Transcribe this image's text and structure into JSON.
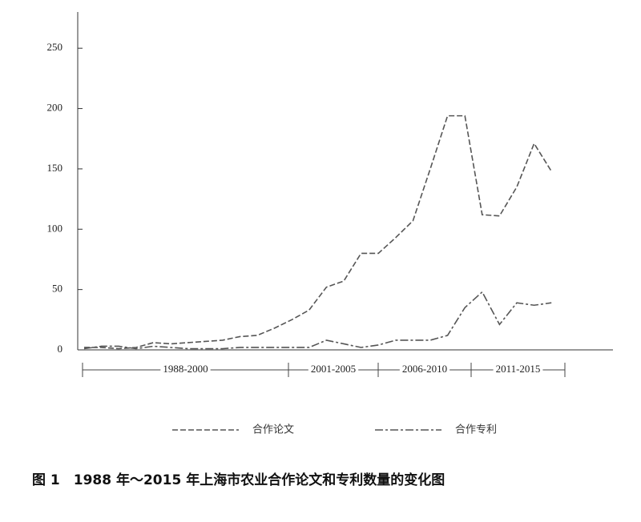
{
  "chart_data": {
    "type": "line",
    "caption": "图 1　1988 年～2015 年上海市农业合作论文和专利数量的变化图",
    "categories": [
      null,
      null,
      null,
      null,
      null,
      null,
      null,
      null,
      null,
      null,
      null,
      null,
      null,
      null,
      null,
      null,
      null,
      null,
      null,
      null,
      null,
      null,
      null,
      null,
      null,
      null,
      null,
      null
    ],
    "periods": [
      "1988-2000",
      "2001-2005",
      "2006-2010",
      "2011-2015"
    ],
    "series": [
      {
        "name": "合作论文",
        "color": "#555555",
        "values": [
          2,
          2,
          1,
          2,
          6,
          5,
          6,
          7,
          8,
          11,
          12,
          18,
          25,
          33,
          52,
          57,
          80,
          80,
          93,
          107,
          150,
          194,
          194,
          112,
          111,
          135,
          171,
          148
        ]
      },
      {
        "name": "合作专利",
        "color": "#555555",
        "values": [
          1,
          3,
          3,
          1,
          3,
          2,
          1,
          1,
          1,
          2,
          2,
          2,
          2,
          2,
          8,
          5,
          2,
          4,
          8,
          8,
          8,
          12,
          35,
          48,
          21,
          39,
          37,
          39
        ]
      }
    ],
    "ylim": [
      0,
      280
    ],
    "yticks": [
      0,
      50,
      100,
      150,
      200,
      250
    ]
  }
}
